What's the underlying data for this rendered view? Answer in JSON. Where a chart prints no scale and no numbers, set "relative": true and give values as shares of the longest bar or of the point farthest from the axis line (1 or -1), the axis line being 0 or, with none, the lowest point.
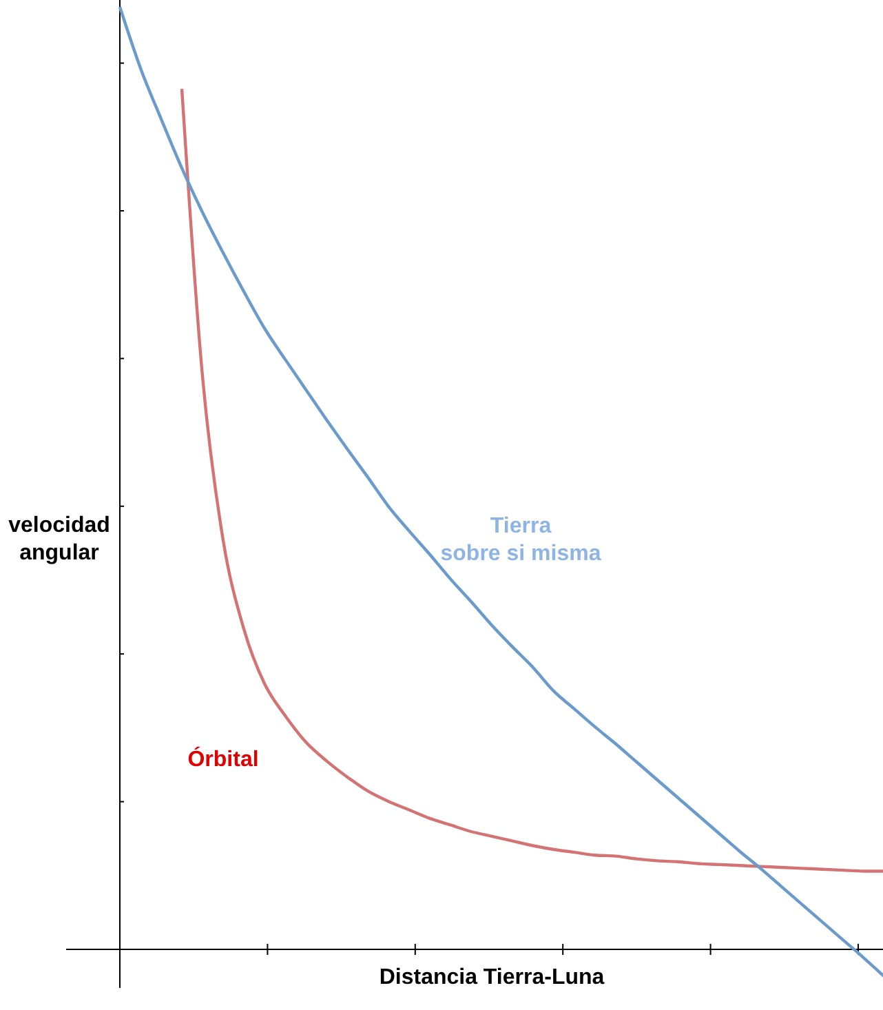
{
  "chart_data": {
    "type": "line",
    "relative": true,
    "xlabel": "Distancia Tierra-Luna",
    "ylabel": "velocidad angular",
    "marker": "none",
    "line_style": "solid",
    "legend": false,
    "grid": false,
    "categories": [
      null,
      null,
      null,
      null,
      null,
      null,
      null,
      null,
      null,
      null,
      null,
      null,
      null,
      null,
      null,
      null,
      null,
      null,
      null,
      null,
      null,
      null,
      null,
      null,
      null,
      null,
      null,
      null,
      null,
      null,
      null,
      null,
      null,
      null,
      null,
      null,
      null,
      null
    ],
    "series": [
      {
        "name": "Órbital",
        "color": "#d47373",
        "values": [
          null,
          null,
          null,
          0.913,
          0.608,
          0.434,
          0.34,
          0.282,
          0.248,
          0.22,
          0.2,
          0.183,
          0.168,
          0.157,
          0.148,
          0.139,
          0.132,
          0.125,
          0.12,
          0.115,
          0.11,
          0.106,
          0.103,
          0.1,
          0.099,
          0.096,
          0.094,
          0.093,
          0.091,
          0.09,
          0.089,
          0.088,
          0.087,
          0.086,
          0.085,
          0.084,
          0.083,
          0.083
        ]
      },
      {
        "name": "Tierra sobre si misma",
        "color": "#6a9bcb",
        "values": [
          1,
          0.935,
          0.881,
          0.829,
          0.782,
          0.739,
          0.698,
          0.659,
          0.626,
          0.594,
          0.562,
          0.531,
          0.501,
          0.47,
          0.444,
          0.419,
          0.393,
          0.369,
          0.344,
          0.321,
          0.299,
          0.274,
          0.255,
          0.236,
          0.218,
          0.199,
          0.18,
          0.161,
          0.142,
          0.123,
          0.104,
          0.086,
          0.067,
          0.048,
          0.029,
          0.01,
          -0.009,
          -0.029
        ]
      }
    ]
  }
}
